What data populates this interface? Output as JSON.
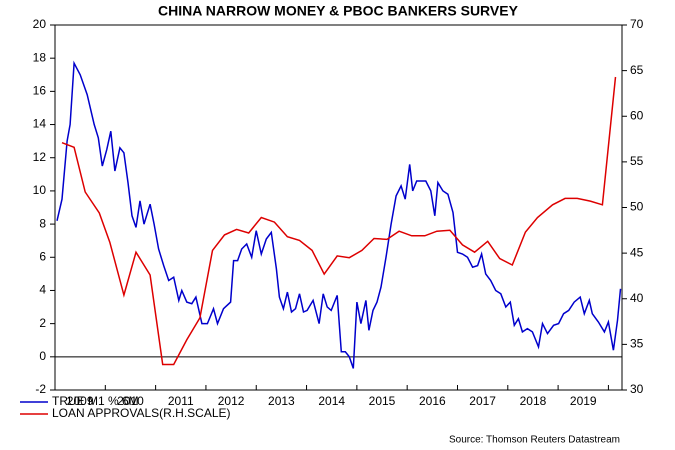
{
  "chart_data": {
    "type": "line",
    "title": "CHINA NARROW MONEY & PBOC BANKERS SURVEY",
    "source": "Source: Thomson Reuters Datastream",
    "xlim": [
      2009,
      2020.27
    ],
    "xticks": [
      2009,
      2010,
      2011,
      2012,
      2013,
      2014,
      2015,
      2016,
      2017,
      2018,
      2019,
      2020
    ],
    "x_labels": [
      "2009",
      "2010",
      "2011",
      "2012",
      "2013",
      "2014",
      "2015",
      "2016",
      "2017",
      "2018",
      "2019"
    ],
    "ylim": [
      -2,
      20
    ],
    "yticks": [
      -2,
      0,
      2,
      4,
      6,
      8,
      10,
      12,
      14,
      16,
      18,
      20
    ],
    "y2lim": [
      30,
      70
    ],
    "y2ticks": [
      30,
      35,
      40,
      45,
      50,
      55,
      60,
      65,
      70
    ],
    "zero_line": 0,
    "series": [
      {
        "name": "TRUE M1 % 6M",
        "color": "#0000cc",
        "axis": "y",
        "x": [
          2009.04,
          2009.14,
          2009.24,
          2009.3,
          2009.38,
          2009.5,
          2009.64,
          2009.78,
          2009.86,
          2009.94,
          2010.03,
          2010.11,
          2010.19,
          2010.29,
          2010.37,
          2010.45,
          2010.53,
          2010.61,
          2010.69,
          2010.77,
          2010.89,
          2010.97,
          2011.06,
          2011.16,
          2011.26,
          2011.36,
          2011.46,
          2011.52,
          2011.62,
          2011.72,
          2011.8,
          2011.92,
          2012.03,
          2012.15,
          2012.23,
          2012.35,
          2012.49,
          2012.55,
          2012.63,
          2012.71,
          2012.81,
          2012.91,
          2013.0,
          2013.1,
          2013.2,
          2013.3,
          2013.4,
          2013.46,
          2013.54,
          2013.62,
          2013.7,
          2013.78,
          2013.86,
          2013.94,
          2014.01,
          2014.13,
          2014.25,
          2014.33,
          2014.41,
          2014.49,
          2014.61,
          2014.69,
          2014.77,
          2014.85,
          2014.93,
          2015.0,
          2015.08,
          2015.18,
          2015.24,
          2015.32,
          2015.4,
          2015.48,
          2015.58,
          2015.68,
          2015.78,
          2015.88,
          2015.96,
          2016.05,
          2016.11,
          2016.19,
          2016.27,
          2016.37,
          2016.47,
          2016.55,
          2016.61,
          2016.71,
          2016.81,
          2016.91,
          2017.0,
          2017.1,
          2017.2,
          2017.3,
          2017.4,
          2017.48,
          2017.56,
          2017.66,
          2017.76,
          2017.86,
          2017.96,
          2018.05,
          2018.13,
          2018.21,
          2018.29,
          2018.39,
          2018.49,
          2018.61,
          2018.69,
          2018.79,
          2018.91,
          2019.01,
          2019.11,
          2019.21,
          2019.32,
          2019.44,
          2019.52,
          2019.62,
          2019.68,
          2019.8,
          2019.92,
          2020.0,
          2020.1,
          2020.18,
          2020.24
        ],
        "values": [
          8.2,
          9.5,
          13,
          14,
          17.7,
          17,
          15.8,
          14,
          13.2,
          11.5,
          12.5,
          13.6,
          11.2,
          12.6,
          12.3,
          10.5,
          8.5,
          7.8,
          9.4,
          8,
          9.2,
          8,
          6.5,
          5.5,
          4.6,
          4.8,
          3.4,
          4,
          3.3,
          3.2,
          3.6,
          2,
          2,
          2.9,
          2,
          2.9,
          3.3,
          5.8,
          5.8,
          6.5,
          6.8,
          6,
          7.6,
          6.2,
          7.1,
          7.5,
          5.3,
          3.6,
          2.9,
          3.9,
          2.7,
          2.9,
          3.8,
          2.7,
          2.8,
          3.4,
          2,
          3.8,
          3,
          2.8,
          3.7,
          0.3,
          0.3,
          0,
          -0.7,
          3.3,
          2,
          3.4,
          1.6,
          2.8,
          3.3,
          4.2,
          6,
          8,
          9.7,
          10.3,
          9.5,
          11.6,
          10,
          10.6,
          10.6,
          10.6,
          10,
          8.5,
          10.5,
          10,
          9.8,
          8.7,
          6.3,
          6.2,
          6,
          5.4,
          5.5,
          6.2,
          5,
          4.6,
          4,
          3.8,
          3,
          3.3,
          1.9,
          2.3,
          1.5,
          1.7,
          1.5,
          0.6,
          2,
          1.4,
          1.9,
          2,
          2.6,
          2.8,
          3.3,
          3.6,
          2.6,
          3.4,
          2.6,
          2.1,
          1.5,
          2.1,
          0.4,
          2.2,
          4.1
        ]
      },
      {
        "name": "LOAN APPROVALS(R.H.SCALE)",
        "color": "#dd0000",
        "axis": "y2",
        "x": [
          2009.14,
          2009.38,
          2009.6,
          2009.88,
          2010.09,
          2010.37,
          2010.61,
          2010.89,
          2011.14,
          2011.36,
          2011.62,
          2011.88,
          2012.13,
          2012.37,
          2012.61,
          2012.85,
          2013.1,
          2013.36,
          2013.62,
          2013.86,
          2014.11,
          2014.35,
          2014.61,
          2014.85,
          2015.1,
          2015.34,
          2015.6,
          2015.84,
          2016.09,
          2016.35,
          2016.59,
          2016.85,
          2017.1,
          2017.34,
          2017.6,
          2017.84,
          2018.09,
          2018.35,
          2018.59,
          2018.89,
          2019.14,
          2019.38,
          2019.64,
          2019.88,
          2020.14
        ],
        "values": [
          57.1,
          56.6,
          51.7,
          49.4,
          46.2,
          40.4,
          45.1,
          42.6,
          32.8,
          32.8,
          35.5,
          37.9,
          45.3,
          47.0,
          47.6,
          47.2,
          48.9,
          48.4,
          46.8,
          46.4,
          45.3,
          42.7,
          44.7,
          44.5,
          45.3,
          46.6,
          46.5,
          47.4,
          46.9,
          46.9,
          47.4,
          47.5,
          45.9,
          45.1,
          46.3,
          44.4,
          43.7,
          47.3,
          48.9,
          50.3,
          51.0,
          51.0,
          50.7,
          50.3,
          64.3
        ]
      }
    ]
  }
}
